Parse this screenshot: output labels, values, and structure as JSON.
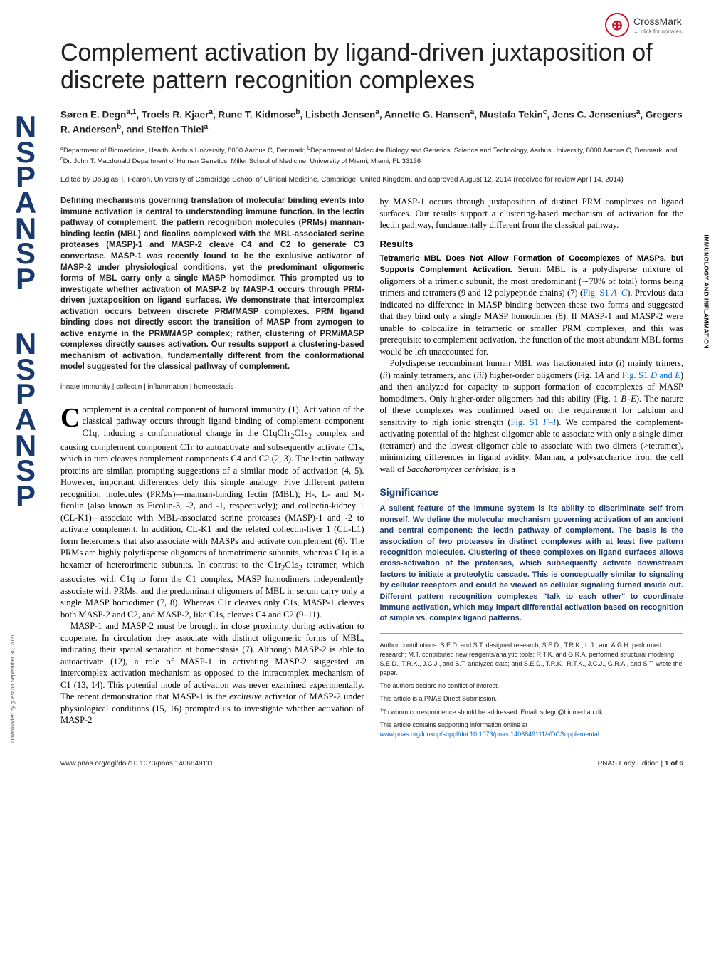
{
  "crossmark": {
    "label": "CrossMark",
    "sub": "← click for updates"
  },
  "vertical_label": "IMMUNOLOGY AND INFLAMMATION",
  "download_label": "Downloaded by guest on September 30, 2021",
  "title": "Complement activation by ligand-driven juxtaposition of discrete pattern recognition complexes",
  "authors_html": "Søren E. Degn<sup>a,1</sup>, Troels R. Kjaer<sup>a</sup>, Rune T. Kidmose<sup>b</sup>, Lisbeth Jensen<sup>a</sup>, Annette G. Hansen<sup>a</sup>, Mustafa Tekin<sup>c</sup>, Jens C. Jensenius<sup>a</sup>, Gregers R. Andersen<sup>b</sup>, and Steffen Thiel<sup>a</sup>",
  "affiliations_html": "<sup>a</sup>Department of Biomedicine, Health, Aarhus University, 8000 Aarhus C, Denmark; <sup>b</sup>Department of Molecular Biology and Genetics, Science and Technology, Aarhus University, 8000 Aarhus C, Denmark; and <sup>c</sup>Dr. John T. Macdonald Department of Human Genetics, Miller School of Medicine, University of Miami, Miami, FL 33136",
  "edited": "Edited by Douglas T. Fearon, University of Cambridge School of Clinical Medicine, Cambridge, United Kingdom, and approved August 12, 2014 (received for review April 14, 2014)",
  "abstract": "Defining mechanisms governing translation of molecular binding events into immune activation is central to understanding immune function. In the lectin pathway of complement, the pattern recognition molecules (PRMs) mannan-binding lectin (MBL) and ficolins complexed with the MBL-associated serine proteases (MASP)-1 and MASP-2 cleave C4 and C2 to generate C3 convertase. MASP-1 was recently found to be the exclusive activator of MASP-2 under physiological conditions, yet the predominant oligomeric forms of MBL carry only a single MASP homodimer. This prompted us to investigate whether activation of MASP-2 by MASP-1 occurs through PRM-driven juxtaposition on ligand surfaces. We demonstrate that intercomplex activation occurs between discrete PRM/MASP complexes. PRM ligand binding does not directly escort the transition of MASP from zymogen to active enzyme in the PRM/MASP complex; rather, clustering of PRM/MASP complexes directly causes activation. Our results support a clustering-based mechanism of activation, fundamentally different from the conformational model suggested for the classical pathway of complement.",
  "keywords": "innate immunity | collectin | inflammation | homeostasis",
  "intro_p1_html": "<span class='dropcap'>C</span>omplement is a central component of humoral immunity (1). Activation of the classical pathway occurs through ligand binding of complement component C1q, inducing a conformational change in the C1qC1r<sub>2</sub>C1s<sub>2</sub> complex and causing complement component C1r to autoactivate and subsequently activate C1s, which in turn cleaves complement components C4 and C2 (2, 3). The lectin pathway proteins are similar, prompting suggestions of a similar mode of activation (4, 5). However, important differences defy this simple analogy. Five different pattern recognition molecules (PRMs)—mannan-binding lectin (MBL); H-, L- and M-ficolin (also known as Ficolin-3, -2, and -1, respectively); and collectin-kidney 1 (CL-K1)—associate with MBL-associated serine proteases (MASP)-1 and -2 to activate complement. In addition, CL-K1 and the related collectin-liver 1 (CL-L1) form heteromers that also associate with MASPs and activate complement (6). The PRMs are highly polydisperse oligomers of homotrimeric subunits, whereas C1q is a hexamer of heterotrimeric subunits. In contrast to the C1r<sub>2</sub>C1s<sub>2</sub> tetramer, which associates with C1q to form the C1 complex, MASP homodimers independently associate with PRMs, and the predominant oligomers of MBL in serum carry only a single MASP homodimer (7, 8). Whereas C1r cleaves only C1s, MASP-1 cleaves both MASP-2 and C2, and MASP-2, like C1s, cleaves C4 and C2 (9–11).",
  "intro_p2_html": "MASP-1 and MASP-2 must be brought in close proximity during activation to cooperate. In circulation they associate with distinct oligomeric forms of MBL, indicating their spatial separation at homeostasis (7). Although MASP-2 is able to autoactivate (12), a role of MASP-1 in activating MASP-2 suggested an intercomplex activation mechanism as opposed to the intracomplex mechanism of C1 (13, 14). This potential mode of activation was never examined experimentally. The recent demonstration that MASP-1 is the <span class='ital'>exclusive</span> activator of MASP-2 under physiological conditions (15, 16) prompted us to investigate whether activation of MASP-2",
  "col2_p1": "by MASP-1 occurs through juxtaposition of distinct PRM complexes on ligand surfaces. Our results support a clustering-based mechanism of activation for the lectin pathway, fundamentally different from the classical pathway.",
  "results_head": "Results",
  "results_sub_html": "<span class='sub-head'>Tetrameric MBL Does Not Allow Formation of Cocomplexes of MASPs, but Supports Complement Activation.</span> Serum MBL is a polydisperse mixture of oligomers of a trimeric subunit, the most predominant (∼70% of total) forms being trimers and tetramers (9 and 12 polypeptide chains) (7) (<span class='link'>Fig. S1 <span class='ital'>A–C</span></span>). Previous data indicated no difference in MASP binding between these two forms and suggested that they bind only a single MASP homodimer (8). If MASP-1 and MASP-2 were unable to colocalize in tetrameric or smaller PRM complexes, and this was prerequisite to complement activation, the function of the most abundant MBL forms would be left unaccounted for.",
  "results_p2_html": "Polydisperse recombinant human MBL was fractionated into (<span class='ital'>i</span>) mainly trimers, (<span class='ital'>ii</span>) mainly tetramers, and (<span class='ital'>iii</span>) higher-order oligomers (Fig. 1<span class='ital'>A</span> and <span class='link'>Fig. S1 <span class='ital'>D</span> and <span class='ital'>E</span></span>) and then analyzed for capacity to support formation of cocomplexes of MASP homodimers. Only higher-order oligomers had this ability (Fig. 1 <span class='ital'>B–E</span>). The nature of these complexes was confirmed based on the requirement for calcium and sensitivity to high ionic strength (<span class='link'>Fig. S1 <span class='ital'>F–I</span></span>). We compared the complement-activating potential of the highest oligomer able to associate with only a single dimer (tetramer) and the lowest oligomer able to associate with two dimers (>tetramer), minimizing differences in ligand avidity. Mannan, a polysaccharide from the cell wall of <span class='ital'>Saccharomyces cerivisiae</span>, is a",
  "significance_head": "Significance",
  "significance_text": "A salient feature of the immune system is its ability to discriminate self from nonself. We define the molecular mechanism governing activation of an ancient and central component: the lectin pathway of complement. The basis is the association of two proteases in distinct complexes with at least five pattern recognition molecules. Clustering of these complexes on ligand surfaces allows cross-activation of the proteases, which subsequently activate downstream factors to initiate a proteolytic cascade. This is conceptually similar to signaling by cellular receptors and could be viewed as cellular signaling turned inside out. Different pattern recognition complexes \"talk to each other\" to coordinate immune activation, which may impart differential activation based on recognition of simple vs. complex ligand patterns.",
  "footnotes": {
    "contributions": "Author contributions: S.E.D. and S.T. designed research; S.E.D., T.R.K., L.J., and A.G.H. performed research; M.T. contributed new reagents/analytic tools; R.T.K. and G.R.A. performed structural modeling; S.E.D., T.R.K., J.C.J., and S.T. analyzed data; and S.E.D., T.R.K., R.T.K., J.C.J., G.R.A., and S.T. wrote the paper.",
    "conflict": "The authors declare no conflict of interest.",
    "submission": "This article is a PNAS Direct Submission.",
    "correspondence_html": "<sup>1</sup>To whom correspondence should be addressed. Email: sdegn@biomed.au.dk.",
    "supporting_html": "This article contains supporting information online at <span class='link'>www.pnas.org/lookup/suppl/doi:10.1073/pnas.1406849111/-/DCSupplemental</span>."
  },
  "footer": {
    "left": "www.pnas.org/cgi/doi/10.1073/pnas.1406849111",
    "right_html": "PNAS Early Edition | <b>1 of 6</b>"
  },
  "colors": {
    "pnas_blue": "#1a3a6e",
    "crossmark_red": "#c8102e",
    "link_blue": "#0066cc",
    "text_black": "#000000",
    "text_dark": "#222222"
  },
  "typography": {
    "title_fontsize": 34,
    "body_fontsize": 12.5,
    "abstract_fontsize": 11.5,
    "affiliation_fontsize": 9.5,
    "footnote_fontsize": 9
  }
}
